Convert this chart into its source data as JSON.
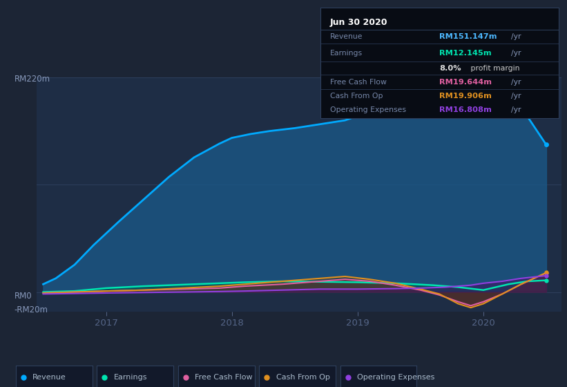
{
  "background_color": "#1c2535",
  "plot_bg_color": "#1e2d45",
  "grid_color": "#2e3f5c",
  "title_box_bg": "#080c14",
  "title_box_border": "#2e3f5c",
  "y_top_label": "RM220m",
  "y_zero_label": "RM0",
  "y_bottom_label": "-RM20m",
  "x_ticks": [
    2017,
    2018,
    2019,
    2020
  ],
  "xlim": [
    2016.45,
    2020.62
  ],
  "ylim": [
    -20,
    220
  ],
  "series": {
    "Revenue": {
      "color": "#00aaff",
      "fill_color": "#1a5a8a",
      "fill_alpha": 0.75,
      "lw": 2.0,
      "data_x": [
        2016.5,
        2016.6,
        2016.75,
        2016.9,
        2017.1,
        2017.3,
        2017.5,
        2017.7,
        2017.9,
        2018.0,
        2018.15,
        2018.3,
        2018.5,
        2018.7,
        2018.9,
        2019.1,
        2019.3,
        2019.5,
        2019.65,
        2019.8,
        2019.9,
        2020.0,
        2020.1,
        2020.2,
        2020.35,
        2020.5
      ],
      "data_y": [
        8,
        14,
        28,
        48,
        72,
        95,
        118,
        138,
        152,
        158,
        162,
        165,
        168,
        172,
        176,
        185,
        196,
        206,
        211,
        215,
        217,
        217,
        215,
        208,
        180,
        151
      ]
    },
    "Earnings": {
      "color": "#00e5b0",
      "fill_color": "#005544",
      "fill_alpha": 0.5,
      "lw": 1.8,
      "data_x": [
        2016.5,
        2016.75,
        2017.0,
        2017.3,
        2017.6,
        2017.9,
        2018.1,
        2018.4,
        2018.7,
        2019.0,
        2019.3,
        2019.6,
        2019.8,
        2020.0,
        2020.2,
        2020.35,
        2020.5
      ],
      "data_y": [
        0,
        1,
        4,
        6,
        7.5,
        9,
        10,
        11,
        10.5,
        10,
        9,
        7,
        5,
        2,
        8,
        11,
        12
      ]
    },
    "Free Cash Flow": {
      "color": "#e060a0",
      "fill_color": "#601040",
      "fill_alpha": 0.4,
      "lw": 1.5,
      "data_x": [
        2016.5,
        2016.75,
        2017.0,
        2017.3,
        2017.6,
        2017.9,
        2018.1,
        2018.4,
        2018.7,
        2018.9,
        2019.1,
        2019.3,
        2019.5,
        2019.65,
        2019.8,
        2019.9,
        2020.0,
        2020.15,
        2020.3,
        2020.5
      ],
      "data_y": [
        -1,
        0,
        1,
        2,
        3,
        4,
        6,
        8,
        11,
        13,
        11,
        7,
        2,
        -3,
        -10,
        -14,
        -10,
        -2,
        8,
        19.6
      ]
    },
    "Cash From Op": {
      "color": "#e09020",
      "fill_color": "#604010",
      "fill_alpha": 0.4,
      "lw": 1.5,
      "data_x": [
        2016.5,
        2016.75,
        2017.0,
        2017.3,
        2017.6,
        2017.9,
        2018.1,
        2018.4,
        2018.7,
        2018.9,
        2019.1,
        2019.3,
        2019.5,
        2019.65,
        2019.8,
        2019.9,
        2020.0,
        2020.15,
        2020.3,
        2020.5
      ],
      "data_y": [
        -1,
        0,
        1,
        2,
        4,
        6,
        8,
        11,
        14,
        16,
        13,
        9,
        3,
        -2,
        -12,
        -16,
        -12,
        -2,
        8,
        19.9
      ]
    },
    "Operating Expenses": {
      "color": "#9040e0",
      "fill_color": "#401060",
      "fill_alpha": 0.5,
      "lw": 1.5,
      "data_x": [
        2016.5,
        2016.75,
        2017.0,
        2017.3,
        2017.6,
        2017.9,
        2018.1,
        2018.4,
        2018.7,
        2019.0,
        2019.3,
        2019.5,
        2019.7,
        2019.9,
        2020.0,
        2020.15,
        2020.3,
        2020.5
      ],
      "data_y": [
        -2,
        -1.5,
        -1,
        -0.5,
        0,
        0.5,
        1,
        2,
        3,
        3,
        3.5,
        4,
        5,
        7,
        9,
        11,
        14,
        16.8
      ]
    }
  },
  "legend_items": [
    {
      "label": "Revenue",
      "color": "#00aaff"
    },
    {
      "label": "Earnings",
      "color": "#00e5b0"
    },
    {
      "label": "Free Cash Flow",
      "color": "#e060a0"
    },
    {
      "label": "Cash From Op",
      "color": "#e09020"
    },
    {
      "label": "Operating Expenses",
      "color": "#9040e0"
    }
  ],
  "info_box": {
    "date": "Jun 30 2020",
    "rows": [
      {
        "label": "Revenue",
        "value": "RM151.147m",
        "value_color": "#4db8ff",
        "unit": "/yr",
        "note": ""
      },
      {
        "label": "Earnings",
        "value": "RM12.145m",
        "value_color": "#00e5b0",
        "unit": "/yr",
        "note": ""
      },
      {
        "label": "",
        "value": "8.0%",
        "value_color": "#ffffff",
        "unit": "",
        "note": " profit margin"
      },
      {
        "label": "Free Cash Flow",
        "value": "RM19.644m",
        "value_color": "#e060a0",
        "unit": "/yr",
        "note": ""
      },
      {
        "label": "Cash From Op",
        "value": "RM19.906m",
        "value_color": "#e09020",
        "unit": "/yr",
        "note": ""
      },
      {
        "label": "Operating Expenses",
        "value": "RM16.808m",
        "value_color": "#9040e0",
        "unit": "/yr",
        "note": ""
      }
    ]
  }
}
